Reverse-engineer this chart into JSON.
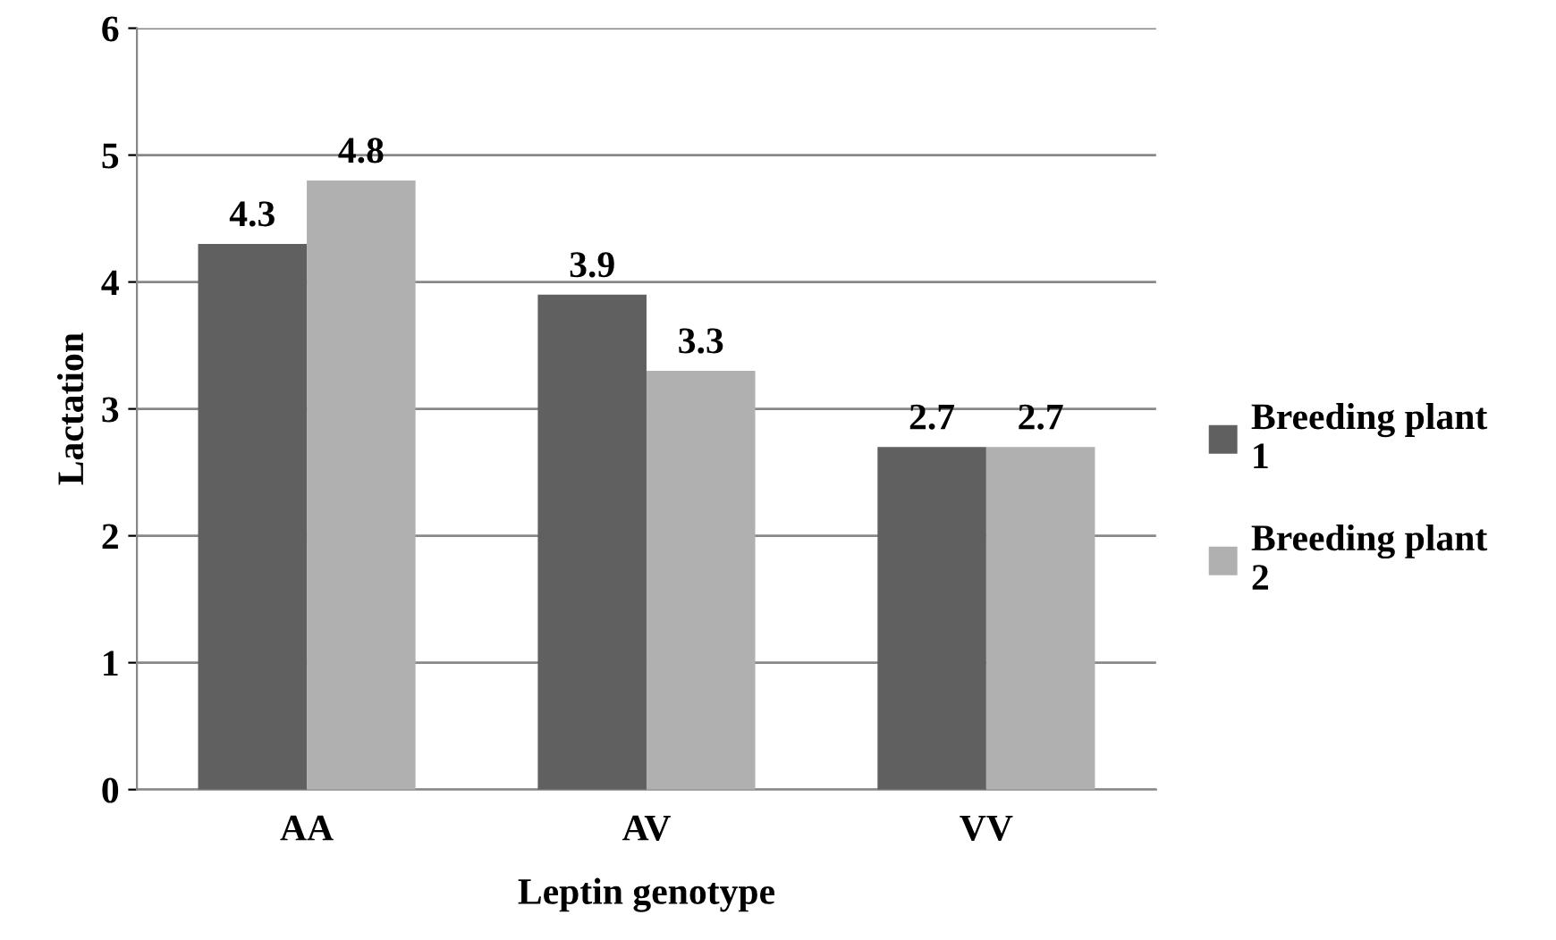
{
  "chart_data": {
    "type": "bar",
    "xlabel": "Leptin genotype",
    "ylabel": "Lactation",
    "categories": [
      "AA",
      "AV",
      "VV"
    ],
    "series": [
      {
        "name": "Breeding plant 1",
        "color": "#606060",
        "values": [
          4.3,
          3.9,
          2.7
        ]
      },
      {
        "name": "Breeding plant 2",
        "color": "#b0b0b0",
        "values": [
          4.8,
          3.3,
          2.7
        ]
      }
    ],
    "ylim": [
      0,
      6
    ],
    "yticks": [
      0,
      1,
      2,
      3,
      4,
      5,
      6
    ],
    "grid": "y",
    "legend": "right",
    "data_labels": true
  }
}
